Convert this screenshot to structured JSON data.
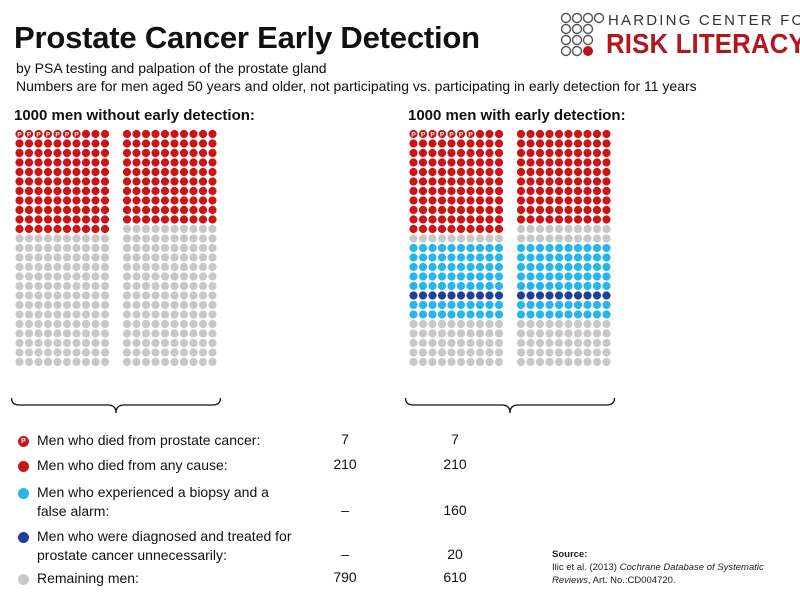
{
  "header": {
    "title": "Prostate Cancer Early Detection",
    "subtitle_line1": "by PSA testing and palpation of the prostate gland",
    "subtitle_line2": "Numbers are for men aged 50 years and older, not participating vs. participating in early detection for 11 years"
  },
  "logo": {
    "top_text": "HARDING CENTER FOR",
    "bottom_text": "RISK LITERACY"
  },
  "colors": {
    "died_any_cause": "#cc1417",
    "biopsy_false_alarm": "#27b6ea",
    "treated_unnecessarily": "#1f3f99",
    "remaining": "#c8c8c8",
    "logo_red": "#b5161e",
    "marker_letter": "P"
  },
  "chart_data": {
    "type": "icon_array",
    "panels": [
      {
        "title": "1000 men without early detection:",
        "counts": {
          "died_from_prostate_cancer": 7,
          "died_from_any_cause": 210,
          "biopsy_false_alarm": 0,
          "treated_unnecessarily": 0,
          "remaining": 790
        }
      },
      {
        "title": "1000 men with early detection:",
        "counts": {
          "died_from_prostate_cancer": 7,
          "died_from_any_cause": 210,
          "biopsy_false_alarm": 160,
          "treated_unnecessarily": 20,
          "remaining": 610
        }
      }
    ]
  },
  "legend": {
    "rows": [
      {
        "label_lines": [
          "Men who died from prostate cancer:"
        ],
        "without": "7",
        "with": "7",
        "color_key": "died_any_cause",
        "marker": true
      },
      {
        "label_lines": [
          "Men who died from any cause:"
        ],
        "without": "210",
        "with": "210",
        "color_key": "died_any_cause",
        "marker": false
      },
      {
        "label_lines": [
          "Men who experienced a biopsy and a",
          "false alarm:"
        ],
        "without": "–",
        "with": "160",
        "color_key": "biopsy_false_alarm",
        "marker": false
      },
      {
        "label_lines": [
          "Men who were diagnosed and treated for",
          "prostate cancer unnecessarily:"
        ],
        "without": "–",
        "with": "20",
        "color_key": "treated_unnecessarily",
        "marker": false
      },
      {
        "label_lines": [
          "Remaining men:"
        ],
        "without": "790",
        "with": "610",
        "color_key": "remaining",
        "marker": false
      }
    ]
  },
  "source": {
    "heading": "Source:",
    "text_before": "Ilic et al. (2013) ",
    "journal": "Cochrane Database of Systematic Reviews",
    "text_after": ", Art. No.:CD004720."
  }
}
